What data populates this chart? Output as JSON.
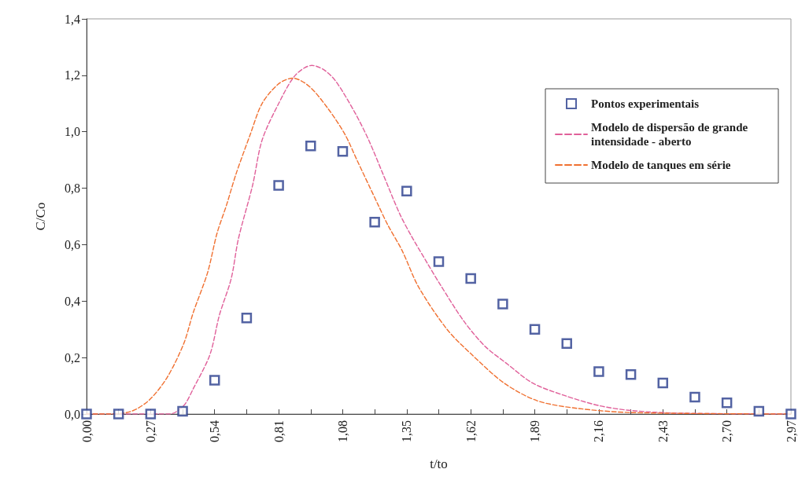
{
  "chart_data": {
    "type": "scatter",
    "xlabel": "t/to",
    "ylabel": "C/Co",
    "xlim": [
      0,
      2.97
    ],
    "ylim": [
      0,
      1.4
    ],
    "xticks": [
      {
        "value": 0,
        "label": "0,00"
      },
      {
        "value": 0.135,
        "label": null
      },
      {
        "value": 0.27,
        "label": "0,27"
      },
      {
        "value": 0.405,
        "label": null
      },
      {
        "value": 0.54,
        "label": "0,54"
      },
      {
        "value": 0.675,
        "label": null
      },
      {
        "value": 0.81,
        "label": "0,81"
      },
      {
        "value": 0.945,
        "label": null
      },
      {
        "value": 1.08,
        "label": "1,08"
      },
      {
        "value": 1.215,
        "label": null
      },
      {
        "value": 1.35,
        "label": "1,35"
      },
      {
        "value": 1.485,
        "label": null
      },
      {
        "value": 1.62,
        "label": "1,62"
      },
      {
        "value": 1.755,
        "label": null
      },
      {
        "value": 1.89,
        "label": "1,89"
      },
      {
        "value": 2.025,
        "label": null
      },
      {
        "value": 2.16,
        "label": "2,16"
      },
      {
        "value": 2.295,
        "label": null
      },
      {
        "value": 2.43,
        "label": "2,43"
      },
      {
        "value": 2.565,
        "label": null
      },
      {
        "value": 2.7,
        "label": "2,70"
      },
      {
        "value": 2.835,
        "label": null
      },
      {
        "value": 2.97,
        "label": "2,97"
      }
    ],
    "yticks": [
      {
        "value": 0,
        "label": "0,0"
      },
      {
        "value": 0.2,
        "label": "0,2"
      },
      {
        "value": 0.4,
        "label": "0,4"
      },
      {
        "value": 0.6,
        "label": "0,6"
      },
      {
        "value": 0.8,
        "label": "0,8"
      },
      {
        "value": 1.0,
        "label": "1,0"
      },
      {
        "value": 1.2,
        "label": "1,2"
      },
      {
        "value": 1.4,
        "label": "1,4"
      }
    ],
    "grid": false,
    "legend": "top right",
    "series": [
      {
        "name": "Pontos experimentais",
        "marker": "square",
        "color": "#283c8c",
        "x": [
          0,
          0.135,
          0.27,
          0.405,
          0.54,
          0.675,
          0.81,
          0.945,
          1.08,
          1.215,
          1.35,
          1.485,
          1.62,
          1.755,
          1.89,
          2.025,
          2.16,
          2.295,
          2.43,
          2.565,
          2.7,
          2.835,
          2.97
        ],
        "values": [
          0,
          0,
          0,
          0.01,
          0.12,
          0.34,
          0.81,
          0.95,
          0.93,
          0.68,
          0.79,
          0.54,
          0.48,
          0.39,
          0.3,
          0.25,
          0.15,
          0.14,
          0.11,
          0.06,
          0.04,
          0.01,
          0
        ]
      },
      {
        "name": "Modelo de dispersão de grande intensidade - aberto",
        "type": "line",
        "marker": "none",
        "line_style": "dashed",
        "color": "#e0609a",
        "x": [
          0,
          0.35,
          0.41,
          0.45,
          0.52,
          0.56,
          0.61,
          0.64,
          0.7,
          0.74,
          0.81,
          0.88,
          0.95,
          1.0,
          1.05,
          1.13,
          1.19,
          1.25,
          1.32,
          1.37,
          1.44,
          1.49,
          1.59,
          1.68,
          1.77,
          1.88,
          2.01,
          2.16,
          2.3,
          2.5,
          2.97
        ],
        "values": [
          0,
          0,
          0.03,
          0.09,
          0.21,
          0.35,
          0.48,
          0.62,
          0.81,
          0.97,
          1.1,
          1.2,
          1.235,
          1.22,
          1.18,
          1.07,
          0.97,
          0.85,
          0.71,
          0.63,
          0.53,
          0.46,
          0.33,
          0.24,
          0.18,
          0.11,
          0.067,
          0.03,
          0.012,
          0.003,
          0
        ]
      },
      {
        "name": "Modelo de tanques em série",
        "type": "line",
        "marker": "none",
        "line_style": "dashed",
        "color": "#f07030",
        "x": [
          0,
          0.1,
          0.19,
          0.265,
          0.34,
          0.41,
          0.45,
          0.51,
          0.55,
          0.59,
          0.63,
          0.69,
          0.74,
          0.81,
          0.87,
          0.94,
          1.02,
          1.09,
          1.14,
          1.23,
          1.27,
          1.33,
          1.4,
          1.52,
          1.625,
          1.76,
          1.9,
          2.07,
          2.3,
          2.97
        ],
        "values": [
          0,
          0,
          0.01,
          0.05,
          0.13,
          0.25,
          0.36,
          0.5,
          0.64,
          0.74,
          0.85,
          0.99,
          1.1,
          1.17,
          1.19,
          1.16,
          1.08,
          0.99,
          0.9,
          0.74,
          0.67,
          0.58,
          0.45,
          0.3,
          0.21,
          0.11,
          0.047,
          0.02,
          0.005,
          0
        ]
      }
    ]
  }
}
